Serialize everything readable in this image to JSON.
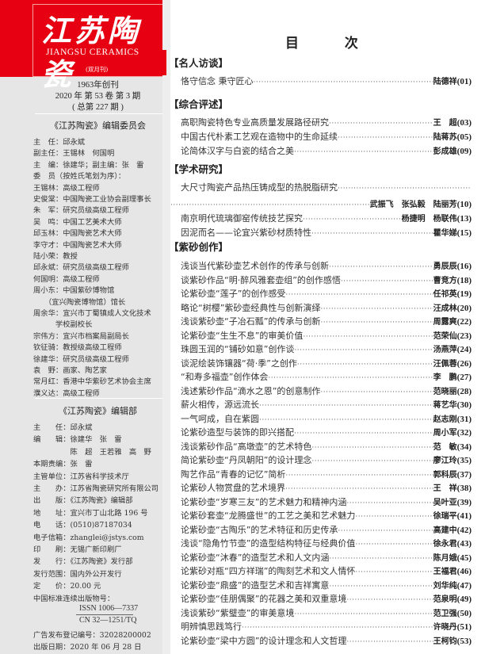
{
  "masthead": {
    "title_cn": "江苏陶瓷",
    "title_en": "JIANGSU CERAMICS",
    "frequency": "(双月刊)",
    "brand_color": "#e60012"
  },
  "issue": {
    "founded": "1963年创刊",
    "volume": "2020 年  第 53 卷  第 3 期",
    "total": "( 总第 227 期 )"
  },
  "committee": {
    "heading": "《江苏陶瓷》编辑委员会",
    "lines": [
      "主　任：邱永斌",
      "副主任：王锡林　何国明",
      "主　编：徐建华；副主编：张　雷",
      "委　员（按姓氏笔划为序）：",
      "王锡林：高级工程师",
      "史俊棠：中国陶瓷工业协会副理事长",
      "朱　军：研究员级高级工程师",
      "吴　鸣：中国工艺美术大师",
      "邱玉林：中国陶瓷艺术大师",
      "李守才：中国陶瓷艺术大师",
      "陆小荣：教授",
      "邱永斌：研究员级高级工程师",
      "何国明：高级工程师",
      "周小东：中国紫砂博物馆",
      "　　（宜兴陶瓷博物馆）馆长",
      "周余华：宜兴市丁蜀镇成人文化技术",
      "　　　学校副校长",
      "宗伟方：宜兴市档案局副局长",
      "钦征骑：教授级高级工程师",
      "徐建华：研究员级高级工程师",
      "袁　野：画家、陶艺家",
      "常月红：香港中华紫砂艺术协会主席",
      "濮义达：高级工程师"
    ]
  },
  "department": {
    "heading": "《江苏陶瓷》编辑部",
    "lines": [
      "主　　任：邱永斌",
      "编　　辑：徐建华　张　雷",
      "　　　　　陈　超　王若雅　高　野",
      "本期责编：张　雷",
      "主管单位：江苏省科学技术厅",
      "主　　办：江苏省陶瓷研究所有限公司",
      "出　　版：《江苏陶瓷》编辑部",
      "地　　址：宜兴市丁山北路 196 号",
      "电　　话：(0510)87187034",
      "电子信箱：zhanglei@jstys.com",
      "印　　刷：无锡广新印刷厂",
      "发　　行：《江苏陶瓷》发行部",
      "发行范围：国内外公开发行",
      "定　　价：20.00 元",
      "中国标准连续出版物号："
    ],
    "issn": "ISSN 1006—7337",
    "cn": "CN 32—1251/TQ",
    "ad_reg": "广告发布登记编号：32028200002",
    "pub_date": "出版日期：2020 年 06 月 28 日"
  },
  "toc": {
    "title": "目 次",
    "sections": [
      {
        "name": "【名人访谈】",
        "entries": [
          {
            "title": "恪守信念 秉守匠心",
            "author": "陆德祥",
            "page": "(01)"
          }
        ]
      },
      {
        "name": "【综合评述】",
        "entries": [
          {
            "title": "高职陶瓷特色专业高质量发展路径研究",
            "author": "王　超",
            "page": "(03)"
          },
          {
            "title": "中国古代朴素工艺观在造物中的生命延续",
            "author": "陆蒋苏",
            "page": "(05)"
          },
          {
            "title": "论简体汉字与白瓷的结合之美",
            "author": "彭成雄",
            "page": "(09)"
          }
        ]
      },
      {
        "name": "【学术研究】",
        "entries": [
          {
            "title": "大尺寸陶瓷产品热压铸成型的热脱脂研究",
            "author": "武振飞　张弘毅　陆丽芳",
            "page": "(10)"
          },
          {
            "title": "南京明代琉璃御窑传统技艺探究",
            "author": "杨捷明　杨联伟",
            "page": "(13)"
          },
          {
            "title": "因泥而名——论宜兴紫砂材质特性",
            "author": "瞿华娣",
            "page": "(15)"
          }
        ]
      },
      {
        "name": "【紫砂创作】",
        "entries": [
          {
            "title": "浅谈当代紫砂壶艺术创作的传承与创新",
            "author": "勇辰辰",
            "page": "(16)"
          },
          {
            "title": "谈紫砂作品“明·醉风雅套壶组”的创作感悟",
            "author": "曹竞方",
            "page": "(18)"
          },
          {
            "title": "论紫砂壶“莲子”的创作感受",
            "author": "任祁英",
            "page": "(19)"
          },
          {
            "title": "略论“树樱”紫砂壶经典性与创新演绎",
            "author": "汪成林",
            "page": "(20)"
          },
          {
            "title": "浅谈紫砂壶“子冶石瓢”的传承与创新",
            "author": "周露爽",
            "page": "(22)"
          },
          {
            "title": "论紫砂壶“生生不息”的审美价值",
            "author": "范荣仙",
            "page": "(23)"
          },
          {
            "title": "珠圆玉润的“铺砂如意”创作谈",
            "author": "汤燕萍",
            "page": "(24)"
          },
          {
            "title": "谈泥绘装饰镶器“荷·季”之创作",
            "author": "汪佩蓉",
            "page": "(26)"
          },
          {
            "title": "“和寿多福壶”创作体会",
            "author": "李　鹏",
            "page": "(27)"
          },
          {
            "title": "浅述紫砂作品“滴水之恩”的创意制作",
            "author": "范晓丽",
            "page": "(28)"
          },
          {
            "title": "薪火相传，源远流长",
            "author": "蒋艺华",
            "page": "(30)"
          },
          {
            "title": "一气呵成，自在紫圆",
            "author": "赵志刚",
            "page": "(31)"
          },
          {
            "title": "论紫砂造型与装饰的即兴搭配",
            "author": "周小军",
            "page": "(32)"
          },
          {
            "title": "浅谈紫砂作品“高墩壶”的艺术特色",
            "author": "范　敏",
            "page": "(34)"
          },
          {
            "title": "简论紫砂壶“丹凤朝阳”的设计理念",
            "author": "廖江玲",
            "page": "(35)"
          },
          {
            "title": "陶艺作品“青春的记忆”简析",
            "author": "郭科辰",
            "page": "(37)"
          },
          {
            "title": "论紫砂人物赏盘的艺术境界",
            "author": "王　祥",
            "page": "(38)"
          },
          {
            "title": "论紫砂壶“岁寒三友”的艺术魅力和精神内涵",
            "author": "吴叶亚",
            "page": "(39)"
          },
          {
            "title": "论紫砂套壶“龙腾盛世”的工艺之美和艺术魅力",
            "author": "徐瑞平",
            "page": "(41)"
          },
          {
            "title": "论紫砂壶“古陶乐”的艺术特征和历史传承",
            "author": "高建中",
            "page": "(42)"
          },
          {
            "title": "浅谈“隐角竹节壶”的造型结构特征与经典价值",
            "author": "徐永君",
            "page": "(43)"
          },
          {
            "title": "论紫砂壶“沐春”的造型艺术和人文内涵",
            "author": "陈月娥",
            "page": "(45)"
          },
          {
            "title": "论紫砂对瓶“四方祥瑞”的陶刻艺术和文人情怀",
            "author": "王福君",
            "page": "(46)"
          },
          {
            "title": "论紫砂壶“鼎盛”的造型艺术和吉祥寓意",
            "author": "刘华纯",
            "page": "(47)"
          },
          {
            "title": "论紫砂壶“佳朋偶聚”的花器之美和双重意境",
            "author": "范泉明",
            "page": "(49)"
          },
          {
            "title": "浅谈紫砂“紫璧壶”的审美意境",
            "author": "范卫强",
            "page": "(50)"
          },
          {
            "title": "明辨慎思践笃行",
            "author": "许晓丹",
            "page": "(51)"
          },
          {
            "title": "论紫砂壶“梁中方圆”的设计理念和人文哲理",
            "author": "王柯钧",
            "page": "(53)"
          }
        ]
      }
    ]
  }
}
